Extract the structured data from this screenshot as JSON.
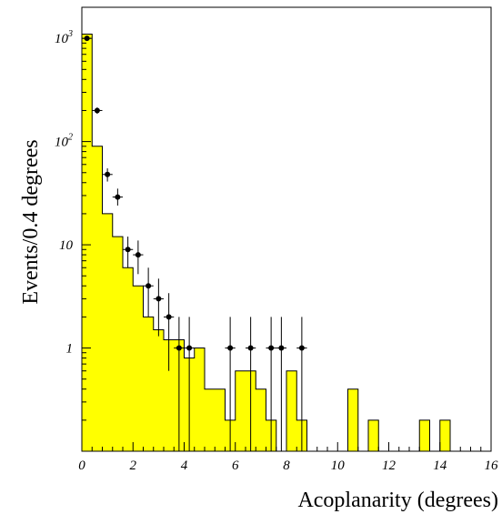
{
  "chart_data": {
    "type": "histogram",
    "xlabel": "Acoplanarity (degrees)",
    "ylabel": "Events/0.4 degrees",
    "xlim": [
      0,
      16
    ],
    "ylim": [
      0.1,
      2000
    ],
    "yscale": "log",
    "bin_width": 0.4,
    "grid": false,
    "colors": {
      "histogram_fill": "#ffff00",
      "histogram_edge": "#000000",
      "data_points": "#000000"
    },
    "x_ticks": [
      {
        "value": 0,
        "label": "0"
      },
      {
        "value": 2,
        "label": "2"
      },
      {
        "value": 4,
        "label": "4"
      },
      {
        "value": 6,
        "label": "6"
      },
      {
        "value": 8,
        "label": "8"
      },
      {
        "value": 10,
        "label": "10"
      },
      {
        "value": 12,
        "label": "12"
      },
      {
        "value": 14,
        "label": "14"
      },
      {
        "value": 16,
        "label": "16"
      }
    ],
    "y_ticks": [
      {
        "value": 1,
        "base": "1",
        "exp": ""
      },
      {
        "value": 10,
        "base": "10",
        "exp": ""
      },
      {
        "value": 100,
        "base": "10",
        "exp": "2"
      },
      {
        "value": 1000,
        "base": "10",
        "exp": "3"
      }
    ],
    "series": [
      {
        "kind": "histogram",
        "values": [
          1100,
          90,
          20,
          12,
          6,
          4,
          2,
          1.5,
          1.2,
          1.2,
          0.8,
          1.0,
          0.4,
          0.4,
          0.2,
          0.6,
          0.6,
          0.4,
          0.2,
          0,
          0.6,
          0.2,
          0,
          0,
          0,
          0,
          0.4,
          0,
          0.2,
          0,
          0,
          0,
          0,
          0.2,
          0,
          0.2,
          0,
          0,
          0,
          0
        ]
      },
      {
        "kind": "points_with_errors",
        "points": [
          {
            "x": 0.2,
            "y": 1000,
            "lo": 970,
            "hi": 1030
          },
          {
            "x": 0.6,
            "y": 200,
            "lo": 186,
            "hi": 214
          },
          {
            "x": 1.0,
            "y": 48,
            "lo": 41,
            "hi": 55
          },
          {
            "x": 1.4,
            "y": 29,
            "lo": 24,
            "hi": 35
          },
          {
            "x": 1.8,
            "y": 9,
            "lo": 6,
            "hi": 12
          },
          {
            "x": 2.2,
            "y": 8,
            "lo": 5.2,
            "hi": 11
          },
          {
            "x": 2.6,
            "y": 4,
            "lo": 2,
            "hi": 6
          },
          {
            "x": 3.0,
            "y": 3,
            "lo": 1.3,
            "hi": 4.7
          },
          {
            "x": 3.4,
            "y": 2,
            "lo": 0.6,
            "hi": 3.4
          },
          {
            "x": 3.8,
            "y": 1,
            "lo": 0.1,
            "hi": 2
          },
          {
            "x": 4.2,
            "y": 1,
            "lo": 0.1,
            "hi": 2
          },
          {
            "x": 5.8,
            "y": 1,
            "lo": 0.1,
            "hi": 2
          },
          {
            "x": 6.6,
            "y": 1,
            "lo": 0.1,
            "hi": 2
          },
          {
            "x": 7.4,
            "y": 1,
            "lo": 0.1,
            "hi": 2
          },
          {
            "x": 7.8,
            "y": 1,
            "lo": 0.1,
            "hi": 2
          },
          {
            "x": 8.6,
            "y": 1,
            "lo": 0.1,
            "hi": 2
          }
        ]
      }
    ]
  }
}
